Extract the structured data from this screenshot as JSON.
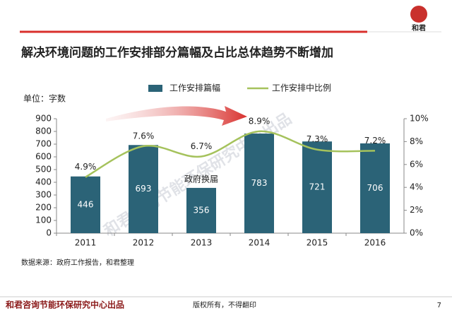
{
  "logo": "和君",
  "title": "解决环境问题的工作安排部分篇幅及占比总体趋势不断增加",
  "source": "数据来源：政府工作报告，和君整理",
  "watermark": "和君咨询节能环保研究中心出品",
  "footer": {
    "left": "和君咨询节能环保研究中心出品",
    "center": "版权所有，不得翻印",
    "page": "7"
  },
  "chart_data": {
    "type": "bar",
    "ylabel": "单位：字数",
    "categories": [
      "2011",
      "2012",
      "2013",
      "2014",
      "2015",
      "2016"
    ],
    "series": [
      {
        "name": "工作安排篇幅",
        "type": "bar",
        "color": "#2b6377",
        "values": [
          446,
          693,
          356,
          783,
          721,
          706
        ]
      },
      {
        "name": "工作安排中比例",
        "type": "line",
        "axis": "y2",
        "color": "#a5c25c",
        "values": [
          4.9,
          7.6,
          6.7,
          8.9,
          7.3,
          7.2
        ],
        "value_labels": [
          "4.9%",
          "7.6%",
          "6.7%",
          "8.9%",
          "7.3%",
          "7.2%"
        ]
      }
    ],
    "annotations": [
      {
        "text": "政府换届",
        "category": "2013"
      }
    ],
    "ylim": [
      0,
      900
    ],
    "yticks": [
      0,
      100,
      200,
      300,
      400,
      500,
      600,
      700,
      800,
      900
    ],
    "y2lim": [
      0,
      10
    ],
    "y2ticks": [
      {
        "value": 0,
        "label": "0%"
      },
      {
        "value": 2,
        "label": "2%"
      },
      {
        "value": 4,
        "label": "4%"
      },
      {
        "value": 6,
        "label": "6%"
      },
      {
        "value": 8,
        "label": "8%"
      },
      {
        "value": 10,
        "label": "10%"
      }
    ],
    "grid": false,
    "legend": "top"
  }
}
